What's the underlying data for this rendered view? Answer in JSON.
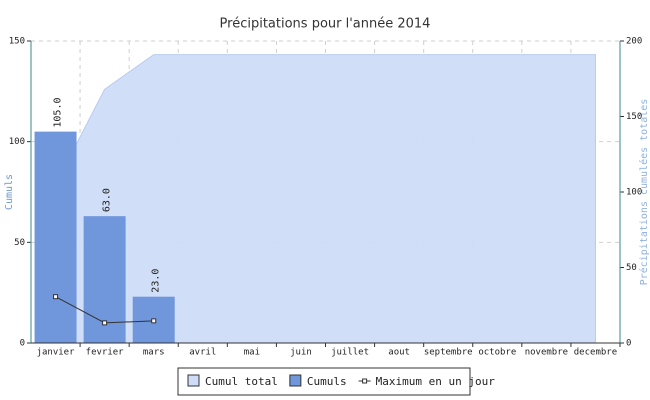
{
  "chart_data": {
    "type": "bar",
    "title": "Précipitations pour l'année 2014",
    "y_label": "Cumuls",
    "y2_label": "Précipitations cumulées totales",
    "categories": [
      "janvier",
      "fevrier",
      "mars",
      "avril",
      "mai",
      "juin",
      "juillet",
      "aout",
      "septembre",
      "octobre",
      "novembre",
      "decembre"
    ],
    "ylim": [
      0,
      150
    ],
    "yticks": [
      0,
      50,
      100,
      150
    ],
    "y2lim": [
      0,
      200
    ],
    "y2ticks": [
      0,
      50,
      100,
      150,
      200
    ],
    "grid": true,
    "series": [
      {
        "name": "Cumul total",
        "type": "area",
        "axis": "y2",
        "color": "#cfdcf7",
        "values": [
          105,
          168,
          191,
          191,
          191,
          191,
          191,
          191,
          191,
          191,
          191,
          191
        ]
      },
      {
        "name": "Cumuls",
        "type": "bar",
        "color": "#7097db",
        "values": [
          105,
          63,
          23,
          null,
          null,
          null,
          null,
          null,
          null,
          null,
          null,
          null
        ],
        "value_labels": [
          "105.0",
          "63.0",
          "23.0",
          null,
          null,
          null,
          null,
          null,
          null,
          null,
          null,
          null
        ]
      },
      {
        "name": "Maximum en un jour",
        "type": "line",
        "color": "#333333",
        "values": [
          23,
          10,
          11,
          null,
          null,
          null,
          null,
          null,
          null,
          null,
          null,
          null
        ]
      }
    ]
  }
}
